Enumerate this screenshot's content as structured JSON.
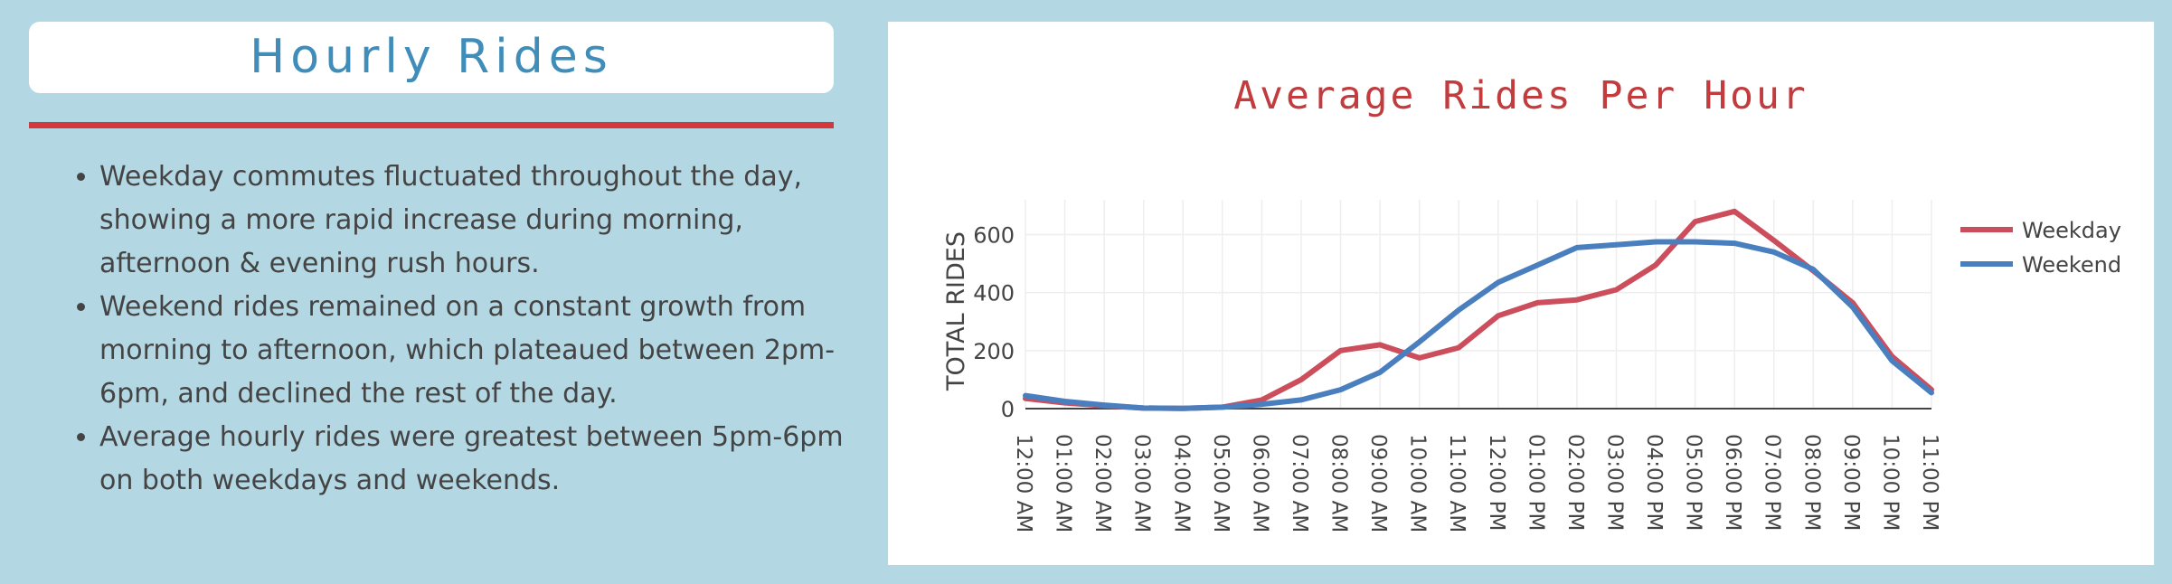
{
  "panel": {
    "title": "Hourly Rides",
    "bullets": [
      "Weekday commutes fluctuated throughout the day, showing a more rapid increase during morning, afternoon & evening rush hours.",
      "Weekend rides remained on a constant growth from morning to afternoon, which plateaued between 2pm-6pm, and declined the rest of the day.",
      "Average hourly rides were greatest between 5pm-6pm on both weekdays and weekends."
    ]
  },
  "colors": {
    "background": "#b3d8e4",
    "title_text": "#3f8db8",
    "rule": "#d2383c",
    "chart_title": "#c23b3d",
    "weekday": "#cc4e5c",
    "weekend": "#4a7fbf"
  },
  "chart_data": {
    "type": "line",
    "title": "Average Rides Per Hour",
    "xlabel": "",
    "ylabel": "TOTAL RIDES",
    "ylim": [
      0,
      720
    ],
    "yticks": [
      0,
      200,
      400,
      600
    ],
    "grid": true,
    "legend_position": "top-right",
    "categories": [
      "12:00 AM",
      "01:00 AM",
      "02:00 AM",
      "03:00 AM",
      "04:00 AM",
      "05:00 AM",
      "06:00 AM",
      "07:00 AM",
      "08:00 AM",
      "09:00 AM",
      "10:00 AM",
      "11:00 AM",
      "12:00 PM",
      "01:00 PM",
      "02:00 PM",
      "03:00 PM",
      "04:00 PM",
      "05:00 PM",
      "06:00 PM",
      "07:00 PM",
      "08:00 PM",
      "09:00 PM",
      "10:00 PM",
      "11:00 PM"
    ],
    "series": [
      {
        "name": "Weekday",
        "values": [
          35,
          20,
          10,
          2,
          1,
          5,
          30,
          100,
          200,
          220,
          175,
          210,
          320,
          365,
          375,
          410,
          495,
          645,
          680,
          580,
          475,
          365,
          180,
          65
        ]
      },
      {
        "name": "Weekend",
        "values": [
          45,
          25,
          12,
          2,
          1,
          5,
          15,
          30,
          65,
          125,
          230,
          340,
          435,
          495,
          555,
          565,
          575,
          575,
          570,
          540,
          480,
          350,
          165,
          55
        ]
      }
    ]
  }
}
